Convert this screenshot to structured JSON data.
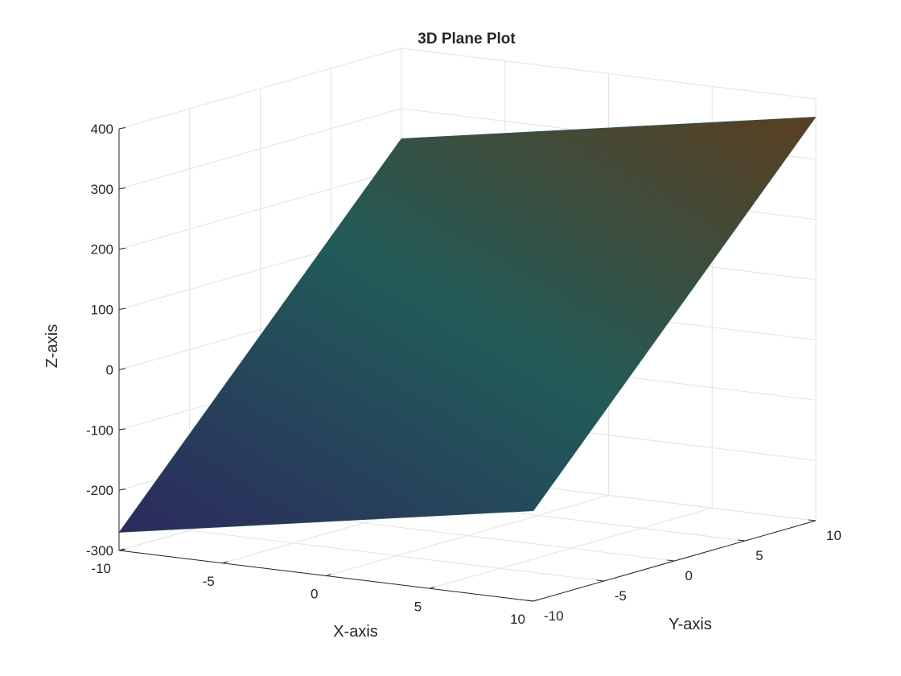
{
  "chart_data": {
    "type": "surface",
    "title": "3D Plane Plot",
    "xlabel": "X-axis",
    "ylabel": "Y-axis",
    "zlabel": "Z-axis",
    "xlim": [
      -10,
      10
    ],
    "ylim": [
      -10,
      10
    ],
    "zlim": [
      -300,
      400
    ],
    "xticks": [
      -10,
      -5,
      0,
      5,
      10
    ],
    "yticks": [
      -10,
      -5,
      0,
      5,
      10
    ],
    "zticks": [
      -300,
      -200,
      -100,
      0,
      100,
      200,
      300,
      400
    ],
    "grid": true,
    "colormap": "parula",
    "surface_corners": [
      {
        "x": -10,
        "y": -10,
        "z": -270
      },
      {
        "x": 10,
        "y": -10,
        "z": -150
      },
      {
        "x": 10,
        "y": 10,
        "z": 370
      },
      {
        "x": -10,
        "y": 10,
        "z": 250
      }
    ],
    "colors": {
      "low": "#2a2560",
      "mid": "#1f5a5a",
      "high": "#5d3b1e",
      "mesh": "#3b6b3b"
    }
  }
}
